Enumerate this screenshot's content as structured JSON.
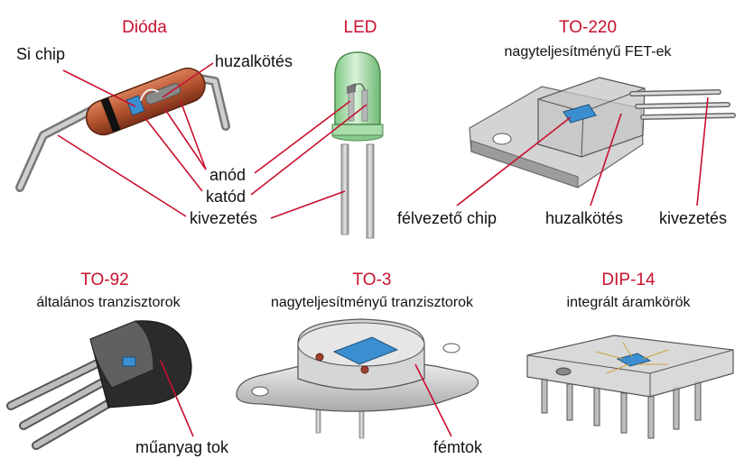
{
  "colors": {
    "title_red": "#c8102e",
    "leader_red": "#c8102e",
    "diode_body": "#b5532f",
    "led_green": "#9fd8a0",
    "chip_blue": "#3b8fd0",
    "metal_grey": "#c9c9c9",
    "plastic_black": "#2b2b2b"
  },
  "diode": {
    "title": "Dióda",
    "labels": {
      "chip": "Si chip",
      "wire": "huzalkötés",
      "anode": "anód",
      "cathode": "katód",
      "lead": "kivezetés"
    }
  },
  "led": {
    "title": "LED"
  },
  "to220": {
    "title": "TO-220",
    "subtitle": "nagyteljesítményű FET-ek",
    "labels": {
      "chip": "félvezető chip",
      "wire": "huzalkötés",
      "lead": "kivezetés"
    }
  },
  "to92": {
    "title": "TO-92",
    "subtitle": "általános tranzisztorok",
    "labels": {
      "case": "műanyag tok"
    }
  },
  "to3": {
    "title": "TO-3",
    "subtitle": "nagyteljesítményű tranzisztorok",
    "labels": {
      "case": "fémtok"
    }
  },
  "dip14": {
    "title": "DIP-14",
    "subtitle": "integrált áramkörök"
  }
}
